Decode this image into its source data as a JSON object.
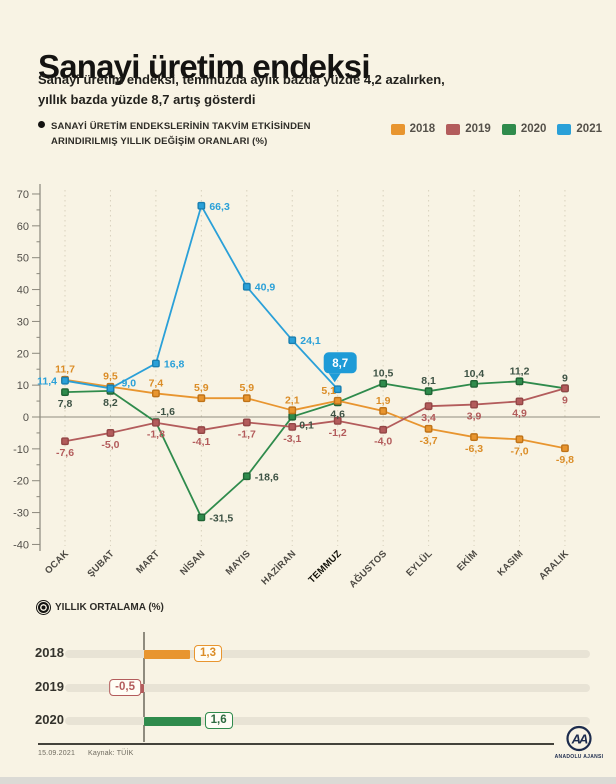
{
  "header": {
    "title": "Sanayi üretim endeksi",
    "subtitle_line1": "Sanayi üretim endeksi, temmuzda aylık bazda yüzde 4,2 azalırken,",
    "subtitle_line2": "yıllık bazda yüzde 8,7 artış gösterdi"
  },
  "chart_data": [
    {
      "type": "line",
      "title": "SANAYİ ÜRETİM ENDEKSLERİNİN TAKVİM ETKİSİNDEN ARINDIRILMIŞ YILLIK DEĞİŞİM ORANLARI (%)",
      "title_lines": [
        "SANAYİ ÜRETİM ENDEKSLERİNİN TAKVİM ETKİSİNDEN",
        "ARINDIRILMIŞ YILLIK DEĞİŞİM ORANLARI (%)"
      ],
      "categories": [
        "OCAK",
        "ŞUBAT",
        "MART",
        "NİSAN",
        "MAYIS",
        "HAZİRAN",
        "TEMMUZ",
        "AĞUSTOS",
        "EYLÜL",
        "EKİM",
        "KASIM",
        "ARALIK"
      ],
      "highlight_category": "TEMMUZ",
      "ylim": [
        -40,
        70
      ],
      "ytick_step": 10,
      "ytick_minor_step": 5,
      "grid": "vertical-dashed",
      "legend_position": "top-right",
      "series": [
        {
          "name": "2018",
          "color": "#E8952F",
          "marker_stroke": "#BF7318",
          "label_color": "#DB8D27",
          "values": [
            11.7,
            9.5,
            7.4,
            5.9,
            5.9,
            2.1,
            5.1,
            1.9,
            -3.7,
            -6.3,
            -7.0,
            -9.8
          ],
          "labels": [
            "11,7",
            "9,5",
            "7,4",
            "5,9",
            "5,9",
            "2,1",
            "5,1",
            "1,9",
            "-3,7",
            "-6,3",
            "-7,0",
            "-9,8"
          ],
          "label_pos": [
            "a",
            "a",
            "a",
            "a",
            "a",
            "a",
            "al",
            "a",
            "b",
            "b",
            "b",
            "b"
          ]
        },
        {
          "name": "2019",
          "color": "#B35C5C",
          "marker_stroke": "#934646",
          "label_color": "#B35C5C",
          "values": [
            -7.6,
            -5.0,
            -1.8,
            -4.1,
            -1.7,
            -3.1,
            -1.2,
            -4.0,
            3.4,
            3.9,
            4.9,
            9
          ],
          "labels": [
            "-7,6",
            "-5,0",
            "-1,8",
            "-4,1",
            "-1,7",
            "-3,1",
            "-1,2",
            "-4,0",
            "3,4",
            "3,9",
            "4,9",
            "9"
          ],
          "label_pos": [
            "b",
            "b",
            "b",
            "b",
            "b",
            "b",
            "b",
            "b",
            "b",
            "b",
            "b",
            "b"
          ]
        },
        {
          "name": "2020",
          "color": "#2F8B4C",
          "marker_stroke": "#1F6334",
          "label_color": "#3E5345",
          "values": [
            7.8,
            8.2,
            -1.6,
            -31.5,
            -18.6,
            0.1,
            4.6,
            10.5,
            8.1,
            10.4,
            11.2,
            9
          ],
          "labels": [
            "7,8",
            "8,2",
            "-1,6",
            "-31,5",
            "-18,6",
            "0,1",
            "4,6",
            "10,5",
            "8,1",
            "10,4",
            "11,2",
            "9"
          ],
          "label_pos": [
            "b",
            "b",
            "ar",
            "r",
            "r",
            "br",
            "b",
            "a",
            "a",
            "a",
            "a",
            "a"
          ]
        },
        {
          "name": "2021",
          "color": "#2AA0D8",
          "marker_stroke": "#1A7FB0",
          "label_color": "#2AA0D8",
          "values": [
            11.4,
            9.0,
            16.8,
            66.3,
            40.9,
            24.1,
            8.7
          ],
          "labels": [
            "11,4",
            "9,0",
            "16,8",
            "66,3",
            "40,9",
            "24,1",
            "8,7"
          ],
          "label_pos": [
            "l",
            "ru",
            "r",
            "r",
            "r",
            "r",
            "callout"
          ]
        }
      ],
      "callout": {
        "series": "2021",
        "category": "TEMMUZ",
        "text": "8,7",
        "bg": "#1E9BD7",
        "text_color": "#FFFFFF"
      }
    },
    {
      "type": "bar",
      "title": "YILLIK ORTALAMA (%)",
      "categories": [
        "2018",
        "2019",
        "2020"
      ],
      "values": [
        1.3,
        -0.5,
        1.6
      ],
      "rows": [
        {
          "year": "2018",
          "value": 1.3,
          "label": "1,3",
          "color": "#E8952F",
          "text_color": "#DB8D27"
        },
        {
          "year": "2019",
          "value": -0.5,
          "label": "-0,5",
          "color": "#B35C5C",
          "text_color": "#B35C5C"
        },
        {
          "year": "2020",
          "value": 1.6,
          "label": "1,6",
          "color": "#2F8B4C",
          "text_color": "#2E6B40"
        }
      ]
    }
  ],
  "footer": {
    "date": "15.09.2021",
    "source": "Kaynak: TÜİK",
    "logo_text": "AA",
    "agency": "ANADOLU AJANSI"
  }
}
